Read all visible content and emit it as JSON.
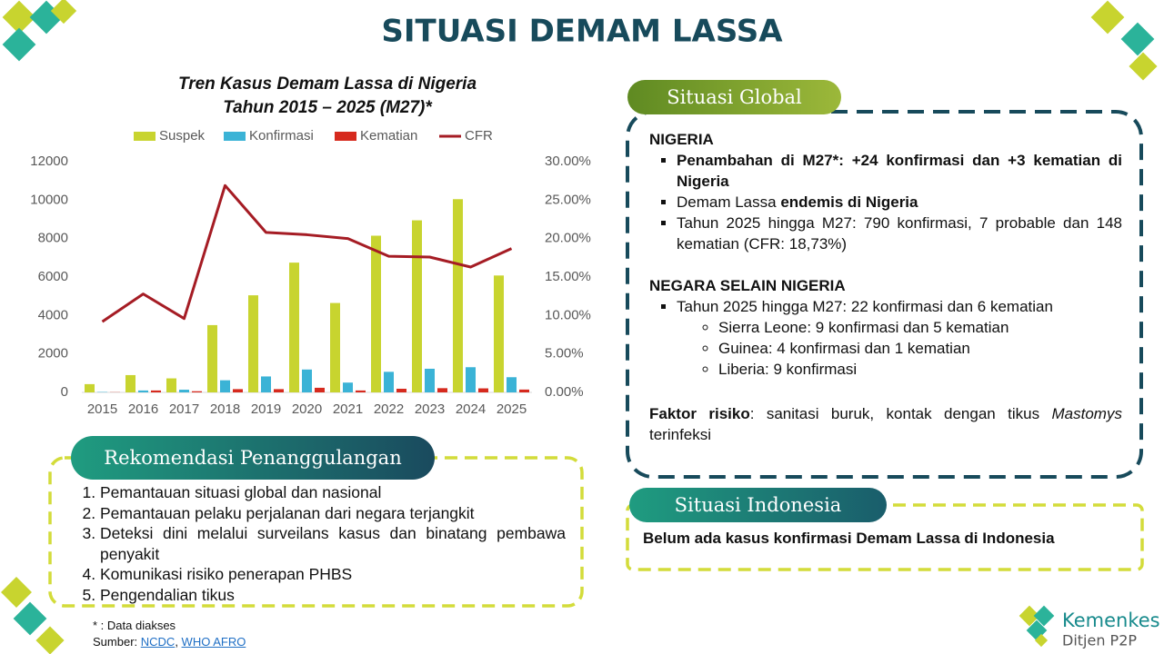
{
  "title": "SITUASI DEMAM LASSA",
  "chart_data": {
    "type": "bar",
    "title": "Tren Kasus Demam Lassa di Nigeria",
    "subtitle": "Tahun 2015 – 2025 (M27)*",
    "categories": [
      "2015",
      "2016",
      "2017",
      "2018",
      "2019",
      "2020",
      "2021",
      "2022",
      "2023",
      "2024",
      "2025"
    ],
    "series": [
      {
        "name": "Suspek",
        "color": "#c8d42f",
        "values": [
          430,
          900,
          730,
          3500,
          5050,
          6750,
          4650,
          8150,
          8950,
          10050,
          6080
        ]
      },
      {
        "name": "Konfirmasi",
        "color": "#3bb3d6",
        "values": [
          20,
          100,
          140,
          630,
          830,
          1190,
          510,
          1070,
          1230,
          1310,
          790
        ]
      },
      {
        "name": "Kematian",
        "color": "#d62a1e",
        "values": [
          10,
          100,
          60,
          170,
          170,
          240,
          100,
          190,
          220,
          210,
          148
        ]
      },
      {
        "name": "CFR",
        "type": "line",
        "axis": "y2",
        "color": "#a51c24",
        "values": [
          9.2,
          12.8,
          9.6,
          26.9,
          20.8,
          20.5,
          20.0,
          17.7,
          17.6,
          16.3,
          18.7
        ]
      }
    ],
    "ylim": [
      0,
      12000
    ],
    "yticks": [
      0,
      2000,
      4000,
      6000,
      8000,
      10000,
      12000
    ],
    "y2lim": [
      0,
      30
    ],
    "y2ticks": [
      {
        "value": 0,
        "label": "0.00%"
      },
      {
        "value": 5,
        "label": "5.00%"
      },
      {
        "value": 10,
        "label": "10.00%"
      },
      {
        "value": 15,
        "label": "15.00%"
      },
      {
        "value": 20,
        "label": "20.00%"
      },
      {
        "value": 25,
        "label": "25.00%"
      },
      {
        "value": 30,
        "label": "30.00%"
      }
    ],
    "legend": "top"
  },
  "global": {
    "header": "Situasi Global",
    "nigeria_heading": "NIGERIA",
    "nigeria_items": [
      [
        "Penambahan di M27*: +24 konfirmasi dan +3 kematian di Nigeria"
      ],
      [
        "Demam Lassa ",
        "endemis di Nigeria"
      ],
      [
        "Tahun 2025 hingga M27: 790 konfirmasi, 7 probable dan 148 kematian (CFR: 18,73%)"
      ]
    ],
    "others_heading": "NEGARA SELAIN NIGERIA",
    "others_item": "Tahun 2025 hingga M27: 22 konfirmasi dan 6 kematian",
    "others_subitems": [
      "Sierra Leone: 9 konfirmasi dan 5 kematian",
      "Guinea: 4 konfirmasi dan 1 kematian",
      "Liberia: 9 konfirmasi"
    ],
    "risk": [
      "Faktor risiko",
      ": sanitasi buruk, kontak dengan tikus ",
      "Mastomys",
      " terinfeksi"
    ]
  },
  "indonesia": {
    "header": "Situasi Indonesia",
    "text": "Belum ada kasus konfirmasi Demam Lassa di Indonesia"
  },
  "recommendation": {
    "header": "Rekomendasi Penanggulangan",
    "items": [
      "Pemantauan situasi global dan nasional",
      "Pemantauan pelaku perjalanan dari negara terjangkit",
      "Deteksi dini melalui surveilans kasus dan binatang pembawa penyakit",
      "Komunikasi risiko penerapan PHBS",
      "Pengendalian tikus"
    ]
  },
  "footnote": {
    "note": "* : Data diakses",
    "source_label": "Sumber: ",
    "sources": [
      "NCDC",
      "WHO AFRO"
    ],
    "separator": ", "
  },
  "logo": {
    "name": "Kemenkes",
    "unit": "Ditjen P2P"
  }
}
